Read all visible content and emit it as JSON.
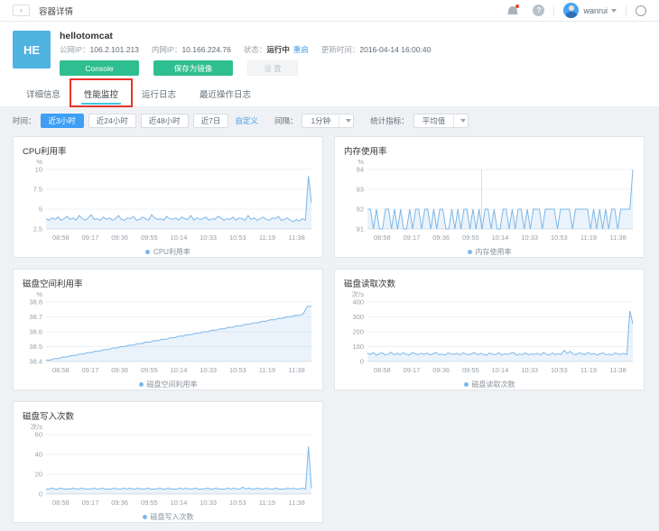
{
  "topbar": {
    "back": "‹",
    "title": "容器详情",
    "username": "wanrui"
  },
  "header": {
    "avatar_text": "HE",
    "name": "hellotomcat",
    "info": {
      "public_ip_label": "公网IP：",
      "public_ip": "106.2.101.213",
      "private_ip_label": "内网IP：",
      "private_ip": "10.166.224.76",
      "status_label": "状态：",
      "status": "运行中",
      "restart_link": "重启",
      "updated_label": "更新时间：",
      "updated": "2016-04-14 16:00:40"
    },
    "buttons": {
      "console": "Console",
      "save_image": "保存为镜像",
      "settings": "设 置"
    }
  },
  "tabs": [
    {
      "label": "详细信息",
      "active": false
    },
    {
      "label": "性能监控",
      "active": true,
      "annotated": true
    },
    {
      "label": "运行日志",
      "active": false
    },
    {
      "label": "最近操作日志",
      "active": false
    }
  ],
  "filters": {
    "time_label": "时间：",
    "time_options": [
      "近3小时",
      "近24小时",
      "近48小时",
      "近7日"
    ],
    "time_active": "近3小时",
    "custom_link": "自定义",
    "interval_label": "间隔：",
    "interval_value": "1分钟",
    "metric_label": "统计指标：",
    "metric_value": "平均值"
  },
  "colors": {
    "line": "#7db7e8",
    "area": "rgba(125,183,232,0.16)",
    "grid": "#eef1f4",
    "axis": "#dfe3e8",
    "tick_text": "#99a1a8",
    "accent_green": "#2fbe8f",
    "accent_blue": "#3e9ff5",
    "tab_underline": "#3ec9e6",
    "annotation_red": "#e7332b",
    "avatar_blue": "#4fb3e0"
  },
  "chart_data": [
    {
      "type": "line",
      "title": "CPU利用率",
      "unit": "%",
      "legend": "CPU利用率",
      "ylim": [
        2.5,
        10
      ],
      "yticks": [
        10,
        7.5,
        5,
        2.5
      ],
      "x_ticks": [
        "08:58",
        "09:17",
        "09:36",
        "09:55",
        "10:14",
        "10:33",
        "10:53",
        "11:19",
        "11:38"
      ],
      "values": [
        3.8,
        3.6,
        3.9,
        3.7,
        4.0,
        3.6,
        3.8,
        4.1,
        3.7,
        3.9,
        3.6,
        4.2,
        3.8,
        3.6,
        3.9,
        4.3,
        3.7,
        3.8,
        3.6,
        4.0,
        3.7,
        3.9,
        3.6,
        3.8,
        4.2,
        3.7,
        3.6,
        3.9,
        3.8,
        4.1,
        3.6,
        3.7,
        4.0,
        3.8,
        3.6,
        4.3,
        3.9,
        3.7,
        3.8,
        3.6,
        4.1,
        3.8,
        3.7,
        3.9,
        3.6,
        4.0,
        3.8,
        3.7,
        4.2,
        3.6,
        3.9,
        3.7,
        3.8,
        4.0,
        3.6,
        3.8,
        3.7,
        4.1,
        3.9,
        3.6,
        3.8,
        3.7,
        4.0,
        3.6,
        3.9,
        3.8,
        3.6,
        4.2,
        3.7,
        3.9,
        3.6,
        3.8,
        4.0,
        3.7,
        3.6,
        3.9,
        3.8,
        4.1,
        3.6,
        3.7,
        3.9,
        3.6,
        3.4,
        3.7,
        3.5,
        3.8,
        3.6,
        9.2,
        5.8
      ]
    },
    {
      "type": "line",
      "title": "内存使用率",
      "unit": "%",
      "legend": "内存使用率",
      "ylim": [
        91,
        94
      ],
      "yticks": [
        94,
        93,
        92,
        91
      ],
      "crosshair": 0.43,
      "x_ticks": [
        "08:58",
        "09:17",
        "09:36",
        "09:55",
        "10:14",
        "10:33",
        "10:53",
        "11:19",
        "11:38"
      ],
      "values": [
        92,
        92,
        91,
        92,
        91,
        91,
        92,
        92,
        91,
        92,
        91,
        92,
        91,
        91,
        92,
        91,
        92,
        92,
        91,
        92,
        92,
        91,
        92,
        91,
        92,
        92,
        91,
        91,
        92,
        91,
        92,
        91,
        92,
        92,
        91,
        92,
        91,
        92,
        91,
        92,
        92,
        91,
        92,
        91,
        91,
        92,
        92,
        91,
        92,
        91,
        92,
        92,
        91,
        92,
        91,
        92,
        92,
        92,
        91,
        92,
        92,
        92,
        92,
        91,
        92,
        92,
        92,
        92,
        91,
        92,
        92,
        92,
        92,
        92,
        91,
        92,
        91,
        92,
        91,
        92,
        91,
        92,
        92,
        91,
        92,
        92,
        92,
        92,
        94
      ]
    },
    {
      "type": "line",
      "title": "磁盘空间利用率",
      "unit": "%",
      "legend": "磁盘空间利用率",
      "ylim": [
        38.4,
        38.8
      ],
      "yticks": [
        38.8,
        38.7,
        38.6,
        38.5,
        38.4
      ],
      "x_ticks": [
        "08:58",
        "09:17",
        "09:36",
        "09:55",
        "10:14",
        "10:33",
        "10:53",
        "11:19",
        "11:38"
      ],
      "values": [
        38.41,
        38.41,
        38.42,
        38.42,
        38.43,
        38.43,
        38.44,
        38.44,
        38.45,
        38.45,
        38.46,
        38.46,
        38.47,
        38.47,
        38.48,
        38.48,
        38.49,
        38.49,
        38.5,
        38.5,
        38.51,
        38.51,
        38.52,
        38.52,
        38.53,
        38.53,
        38.54,
        38.54,
        38.55,
        38.55,
        38.56,
        38.56,
        38.57,
        38.57,
        38.58,
        38.58,
        38.59,
        38.59,
        38.6,
        38.6,
        38.61,
        38.61,
        38.62,
        38.62,
        38.63,
        38.63,
        38.64,
        38.64,
        38.65,
        38.65,
        38.66,
        38.66,
        38.67,
        38.67,
        38.68,
        38.68,
        38.69,
        38.69,
        38.7,
        38.7,
        38.71,
        38.71,
        38.72,
        38.77,
        38.77
      ]
    },
    {
      "type": "line",
      "title": "磁盘读取次数",
      "unit": "次/s",
      "legend": "磁盘读取次数",
      "ylim": [
        0,
        400
      ],
      "yticks": [
        400,
        300,
        200,
        100,
        0
      ],
      "x_ticks": [
        "08:58",
        "09:17",
        "09:36",
        "09:55",
        "10:14",
        "10:33",
        "10:53",
        "11:19",
        "11:38"
      ],
      "values": [
        55,
        48,
        60,
        42,
        52,
        58,
        45,
        50,
        62,
        44,
        55,
        47,
        58,
        50,
        43,
        60,
        52,
        46,
        55,
        48,
        57,
        44,
        52,
        60,
        46,
        50,
        43,
        57,
        52,
        47,
        55,
        44,
        58,
        50,
        46,
        52,
        60,
        45,
        55,
        48,
        43,
        57,
        50,
        46,
        59,
        44,
        52,
        47,
        55,
        60,
        43,
        50,
        46,
        58,
        44,
        52,
        48,
        55,
        45,
        60,
        50,
        43,
        57,
        46,
        52,
        48,
        75,
        55,
        68,
        50,
        44,
        58,
        52,
        46,
        60,
        48,
        55,
        43,
        52,
        58,
        46,
        50,
        44,
        57,
        52,
        48,
        55,
        46,
        340,
        255
      ]
    },
    {
      "type": "line",
      "title": "磁盘写入次数",
      "unit": "次/s",
      "legend": "磁盘写入次数",
      "ylim": [
        0,
        60
      ],
      "yticks": [
        60,
        40,
        20,
        0
      ],
      "x_ticks": [
        "08:58",
        "09:17",
        "09:36",
        "09:55",
        "10:14",
        "10:33",
        "10:53",
        "11:19",
        "11:38"
      ],
      "values": [
        5,
        5,
        6,
        5,
        5,
        6,
        5,
        5,
        5,
        6,
        5,
        5,
        6,
        5,
        5,
        5,
        6,
        5,
        5,
        6,
        5,
        5,
        5,
        6,
        5,
        5,
        6,
        5,
        6,
        5,
        5,
        6,
        5,
        5,
        6,
        5,
        5,
        5,
        6,
        5,
        5,
        6,
        5,
        5,
        5,
        6,
        5,
        6,
        5,
        5,
        6,
        5,
        5,
        5,
        6,
        5,
        5,
        6,
        5,
        5,
        5,
        6,
        5,
        6,
        5,
        5,
        7,
        5,
        6,
        5,
        5,
        6,
        5,
        5,
        6,
        5,
        5,
        6,
        5,
        5,
        5,
        6,
        5,
        6,
        5,
        5,
        6,
        5,
        48,
        6
      ]
    }
  ]
}
